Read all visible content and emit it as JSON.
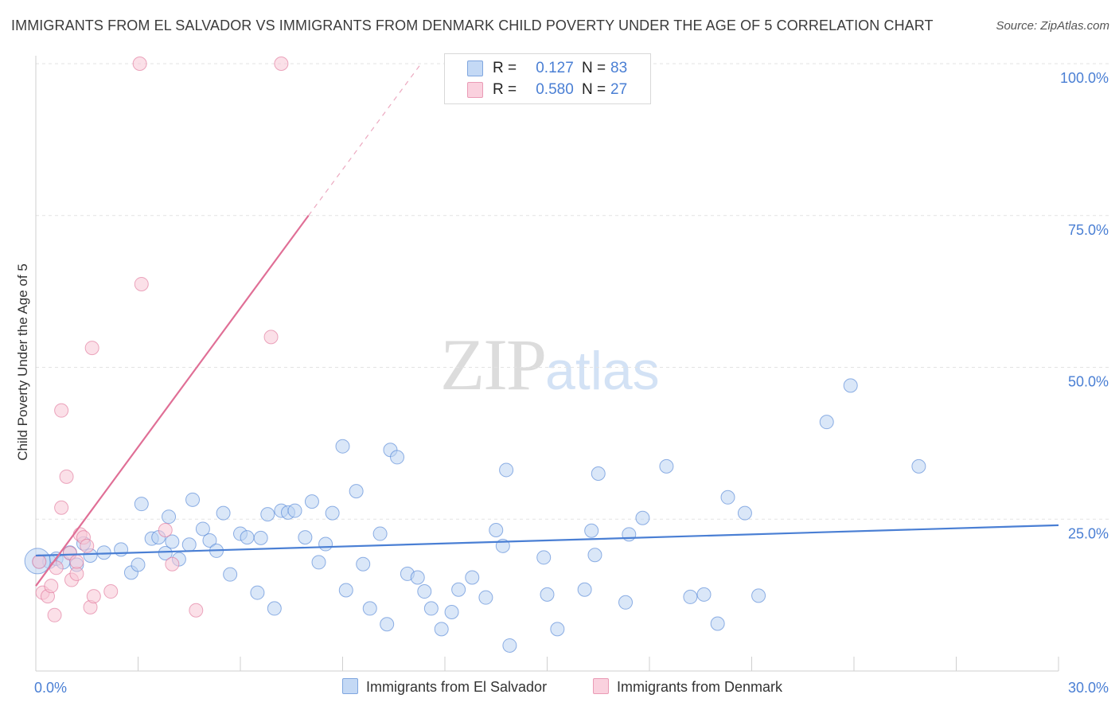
{
  "title": "IMMIGRANTS FROM EL SALVADOR VS IMMIGRANTS FROM DENMARK CHILD POVERTY UNDER THE AGE OF 5 CORRELATION CHART",
  "source": "Source: ZipAtlas.com",
  "watermark": {
    "zip": "ZIP",
    "atlas": "atlas"
  },
  "legend": {
    "r_label": "R =",
    "n_label": "N =",
    "rows": [
      {
        "r": "0.127",
        "n": "83",
        "color": "#9ec0ee"
      },
      {
        "r": "0.580",
        "n": "27",
        "color": "#f5b3c8"
      }
    ]
  },
  "bottom_legend": [
    {
      "label": "Immigrants from El Salvador",
      "color": "#9ec0ee"
    },
    {
      "label": "Immigrants from Denmark",
      "color": "#f5b3c8"
    }
  ],
  "chart_data": {
    "type": "scatter",
    "title": "IMMIGRANTS FROM EL SALVADOR VS IMMIGRANTS FROM DENMARK CHILD POVERTY UNDER THE AGE OF 5 CORRELATION CHART",
    "xlabel": "",
    "ylabel": "Child Poverty Under the Age of 5",
    "xlim": [
      0,
      30
    ],
    "ylim": [
      0,
      100
    ],
    "x_tick_labels": [
      "0.0%",
      "30.0%"
    ],
    "y_tick_labels": [
      "25.0%",
      "50.0%",
      "75.0%",
      "100.0%"
    ],
    "y_ticks": [
      25,
      50,
      75,
      100
    ],
    "grid": true,
    "series": [
      {
        "name": "Immigrants from El Salvador",
        "color": "#4a7fd4",
        "fill": "#bcd3f3",
        "trend": {
          "x": [
            0,
            30
          ],
          "y": [
            19.0,
            24.0
          ],
          "style": "solid"
        },
        "points": [
          [
            0.1,
            18.0
          ],
          [
            0.4,
            18.0
          ],
          [
            0.6,
            18.5
          ],
          [
            0.8,
            17.9
          ],
          [
            1.0,
            19.5
          ],
          [
            1.2,
            17.5
          ],
          [
            1.4,
            21.0
          ],
          [
            1.6,
            19.0
          ],
          [
            2.0,
            19.5
          ],
          [
            2.5,
            20.0
          ],
          [
            2.8,
            16.2
          ],
          [
            3.0,
            17.5
          ],
          [
            3.1,
            27.5
          ],
          [
            3.4,
            21.8
          ],
          [
            3.6,
            22.0
          ],
          [
            3.8,
            19.4
          ],
          [
            3.9,
            25.4
          ],
          [
            4.0,
            21.3
          ],
          [
            4.2,
            18.4
          ],
          [
            4.5,
            20.8
          ],
          [
            4.6,
            28.2
          ],
          [
            4.9,
            23.4
          ],
          [
            5.1,
            21.5
          ],
          [
            5.3,
            19.8
          ],
          [
            5.5,
            26.0
          ],
          [
            5.7,
            15.9
          ],
          [
            6.0,
            22.6
          ],
          [
            6.2,
            22.0
          ],
          [
            6.5,
            12.9
          ],
          [
            6.6,
            21.9
          ],
          [
            6.8,
            25.8
          ],
          [
            7.0,
            10.3
          ],
          [
            7.2,
            26.4
          ],
          [
            7.4,
            26.1
          ],
          [
            7.6,
            26.4
          ],
          [
            7.9,
            22.0
          ],
          [
            8.1,
            27.9
          ],
          [
            8.3,
            17.9
          ],
          [
            8.5,
            20.9
          ],
          [
            8.7,
            26.0
          ],
          [
            9.0,
            37.0
          ],
          [
            9.1,
            13.3
          ],
          [
            9.4,
            29.6
          ],
          [
            9.6,
            17.6
          ],
          [
            9.8,
            10.3
          ],
          [
            10.1,
            22.6
          ],
          [
            10.3,
            7.7
          ],
          [
            10.4,
            36.4
          ],
          [
            10.6,
            35.2
          ],
          [
            10.9,
            16.0
          ],
          [
            11.2,
            15.4
          ],
          [
            11.4,
            13.1
          ],
          [
            11.6,
            10.3
          ],
          [
            11.9,
            6.9
          ],
          [
            12.2,
            9.7
          ],
          [
            12.4,
            13.4
          ],
          [
            12.8,
            15.4
          ],
          [
            13.2,
            12.1
          ],
          [
            13.5,
            23.2
          ],
          [
            13.7,
            20.6
          ],
          [
            13.8,
            33.1
          ],
          [
            13.9,
            4.2
          ],
          [
            14.9,
            18.7
          ],
          [
            15.0,
            12.6
          ],
          [
            15.3,
            6.9
          ],
          [
            16.1,
            13.4
          ],
          [
            16.3,
            23.1
          ],
          [
            16.4,
            19.1
          ],
          [
            16.5,
            32.5
          ],
          [
            17.3,
            11.3
          ],
          [
            17.4,
            22.5
          ],
          [
            17.8,
            25.2
          ],
          [
            18.5,
            33.7
          ],
          [
            19.2,
            12.2
          ],
          [
            19.6,
            12.6
          ],
          [
            20.0,
            7.8
          ],
          [
            20.3,
            28.6
          ],
          [
            20.8,
            26.0
          ],
          [
            21.2,
            12.4
          ],
          [
            23.2,
            41.0
          ],
          [
            23.9,
            47.0
          ],
          [
            25.9,
            33.7
          ],
          [
            0.05,
            18.1
          ]
        ],
        "big_point_index": 82
      },
      {
        "name": "Immigrants from Denmark",
        "color": "#e06f96",
        "fill": "#f8c6d6",
        "trend": {
          "x": [
            0,
            8.0
          ],
          "y": [
            14.0,
            75.0
          ],
          "style": "solid",
          "extended": {
            "x": [
              8.0,
              11.3
            ],
            "y": [
              75.0,
              100.0
            ],
            "style": "dashed"
          }
        },
        "points": [
          [
            0.2,
            12.9
          ],
          [
            0.35,
            12.3
          ],
          [
            0.45,
            14.0
          ],
          [
            0.55,
            9.2
          ],
          [
            0.6,
            17.0
          ],
          [
            0.75,
            42.9
          ],
          [
            0.9,
            32.0
          ],
          [
            0.75,
            26.9
          ],
          [
            1.0,
            19.4
          ],
          [
            1.05,
            15.0
          ],
          [
            1.2,
            16.0
          ],
          [
            1.3,
            22.5
          ],
          [
            1.4,
            22.0
          ],
          [
            1.5,
            20.6
          ],
          [
            1.6,
            10.5
          ],
          [
            1.65,
            53.2
          ],
          [
            1.7,
            12.3
          ],
          [
            2.2,
            13.1
          ],
          [
            3.05,
            100.0
          ],
          [
            3.1,
            63.7
          ],
          [
            3.8,
            23.2
          ],
          [
            4.0,
            17.6
          ],
          [
            4.7,
            10.0
          ],
          [
            6.9,
            55.0
          ],
          [
            7.2,
            100.0
          ],
          [
            0.1,
            18.0
          ],
          [
            1.2,
            18.0
          ]
        ]
      }
    ]
  }
}
